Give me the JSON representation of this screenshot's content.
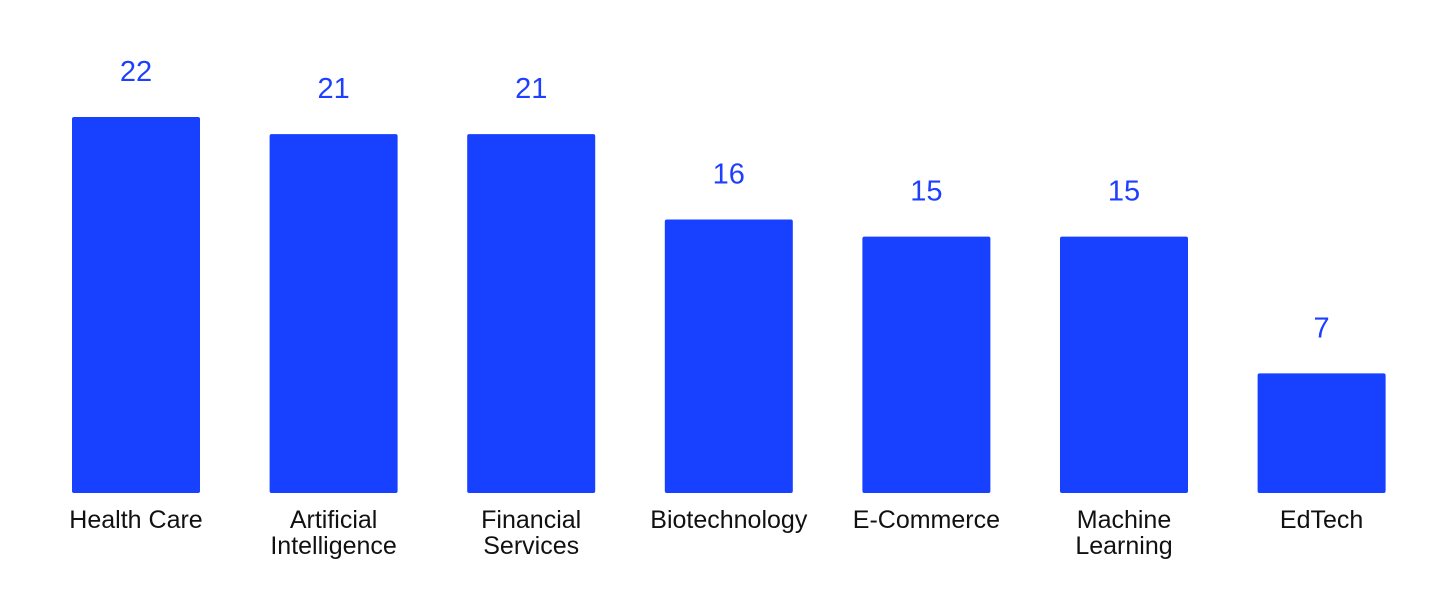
{
  "chart_data": {
    "type": "bar",
    "title": "",
    "xlabel": "",
    "ylabel": "",
    "categories": [
      [
        "Health Care"
      ],
      [
        "Artificial",
        "Intelligence"
      ],
      [
        "Financial",
        "Services"
      ],
      [
        "Biotechnology"
      ],
      [
        "E-Commerce"
      ],
      [
        "Machine",
        "Learning"
      ],
      [
        "EdTech"
      ]
    ],
    "values": [
      22,
      21,
      21,
      16,
      15,
      15,
      7
    ],
    "ylim": [
      0,
      22
    ],
    "grid": false,
    "legend": "none",
    "bar_color": "#1740ff",
    "label_color": "#1f3fff"
  }
}
